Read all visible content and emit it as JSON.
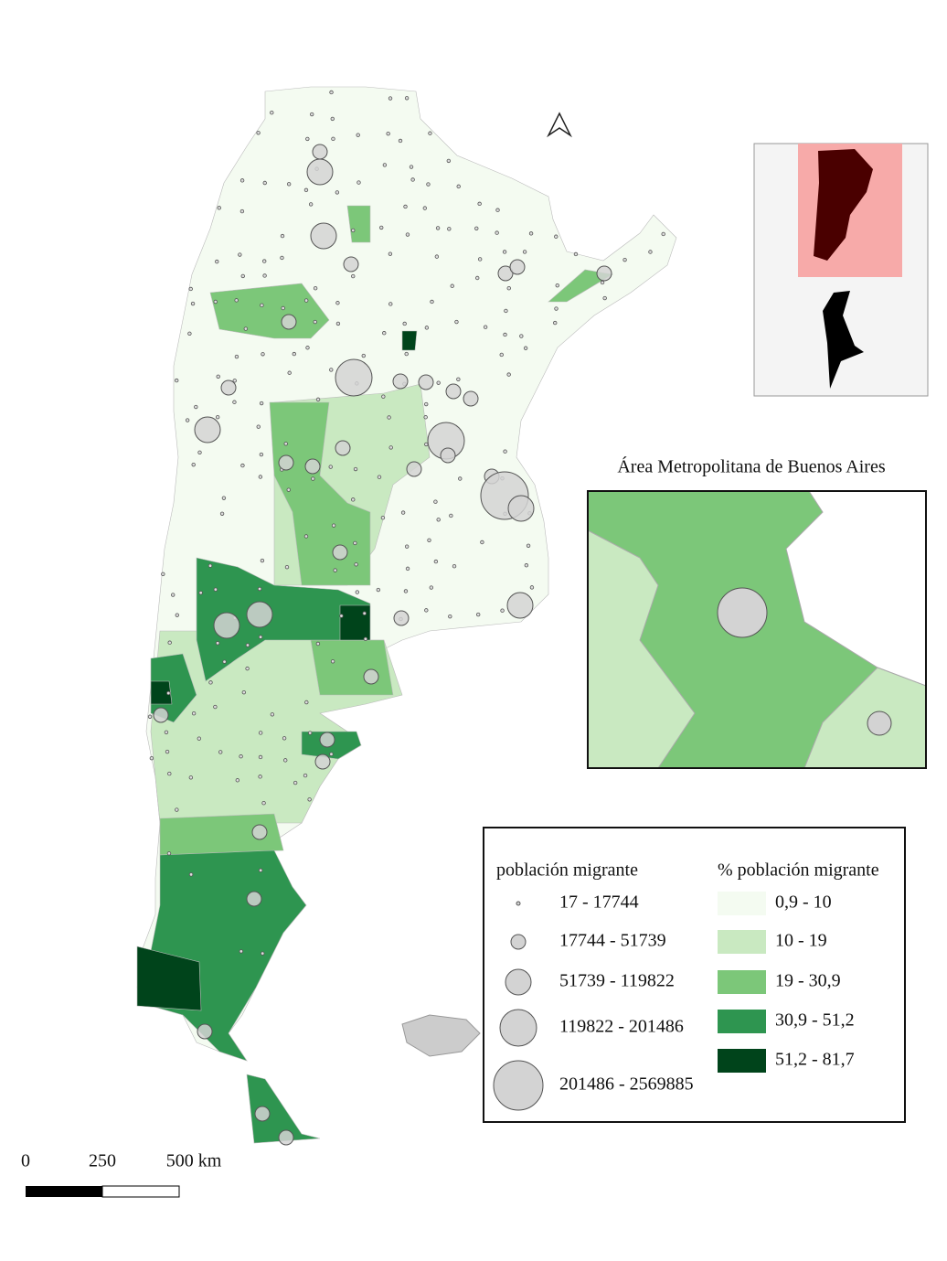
{
  "inset": {
    "title": "Área Metropolitana de Buenos Aires"
  },
  "legend": {
    "size_title": "población migrante",
    "size_classes": [
      "17 - 17744",
      "17744 - 51739",
      "51739 - 119822",
      "119822 - 201486",
      "201486 - 2569885"
    ],
    "color_title": "% población migrante",
    "color_classes": [
      {
        "label": "0,9 - 10",
        "color": "#f4fbf1"
      },
      {
        "label": "10 - 19",
        "color": "#c9e9c1"
      },
      {
        "label": "19 - 30,9",
        "color": "#7cc779"
      },
      {
        "label": "30,9 - 51,2",
        "color": "#2e9550"
      },
      {
        "label": "51,2 - 81,7",
        "color": "#00441b"
      }
    ]
  },
  "scale_bar": {
    "labels": [
      "0",
      "250",
      "500 km"
    ]
  }
}
